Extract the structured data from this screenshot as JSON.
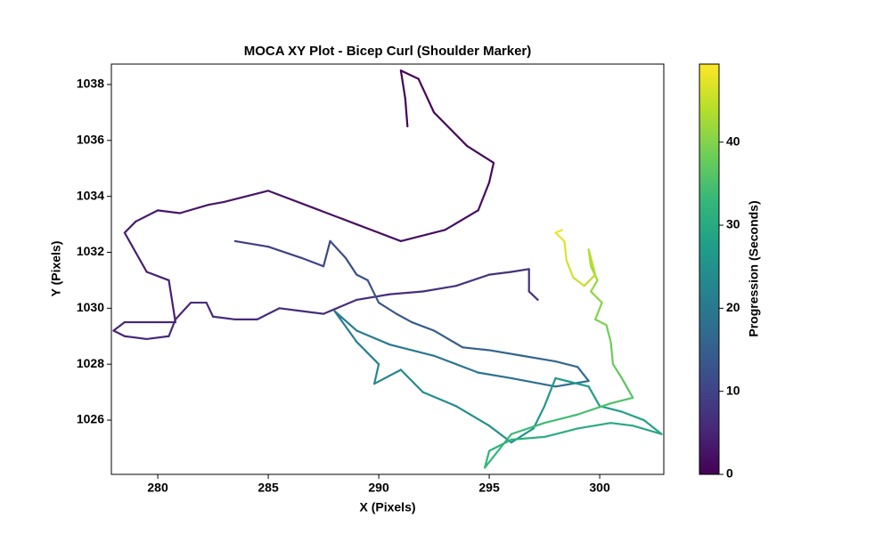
{
  "chart_data": {
    "type": "line",
    "title": "MOCA XY Plot - Bicep Curl (Shoulder Marker)",
    "xlabel": "X (Pixels)",
    "ylabel": "Y (Pixels)",
    "x": [
      291.3,
      291.2,
      291,
      291.8,
      292.5,
      294,
      295.2,
      295,
      294.5,
      293,
      291,
      289,
      287,
      285,
      283,
      282.3,
      281,
      280,
      279,
      278.5,
      279,
      279.5,
      280.5,
      280.7,
      280.8,
      279.5,
      278.5,
      278,
      278.5,
      279.5,
      280.5,
      280.8,
      281.5,
      282.2,
      282.5,
      283.5,
      284.5,
      285.5,
      286.5,
      287.5,
      289,
      290.5,
      292,
      293.5,
      295,
      296,
      296.8,
      296.8,
      297.2,
      null,
      283.5,
      285,
      286.5,
      287.5,
      287.8,
      288.5,
      289,
      289.5,
      290,
      290.8,
      291.5,
      292.5,
      293.8,
      295,
      296.5,
      298,
      299,
      299.5,
      298,
      296,
      294.5,
      292.5,
      290.5,
      289,
      288,
      289,
      290,
      289.8,
      291,
      292,
      293.5,
      295,
      296,
      297,
      297.5,
      298,
      299.5,
      300,
      301,
      302,
      302.8,
      301.5,
      300.5,
      299,
      297.5,
      296,
      295,
      294.8,
      296,
      297.5,
      299,
      300.5,
      301.5,
      301,
      300.6,
      300.5,
      300.3,
      299.8,
      300.1,
      299.6,
      299.9,
      299.6,
      299.5,
      299.8,
      299.3,
      298.8,
      298.5,
      298.4,
      298,
      298.3
    ],
    "y": [
      1036.5,
      1037.5,
      1038.5,
      1038.2,
      1037,
      1035.8,
      1035.2,
      1034.5,
      1033.5,
      1032.8,
      1032.4,
      1033,
      1033.6,
      1034.2,
      1033.8,
      1033.7,
      1033.4,
      1033.5,
      1033.1,
      1032.7,
      1032,
      1031.3,
      1031,
      1030,
      1029.5,
      1029.5,
      1029.5,
      1029.2,
      1029,
      1028.9,
      1029,
      1029.6,
      1030.2,
      1030.2,
      1029.7,
      1029.6,
      1029.6,
      1030,
      1029.9,
      1029.8,
      1030.3,
      1030.5,
      1030.6,
      1030.8,
      1031.2,
      1031.3,
      1031.4,
      1030.6,
      1030.3,
      null,
      1032.4,
      1032.2,
      1031.8,
      1031.5,
      1032.4,
      1031.8,
      1031.2,
      1031,
      1030.2,
      1029.8,
      1029.5,
      1029.2,
      1028.6,
      1028.5,
      1028.3,
      1028.1,
      1027.9,
      1027.4,
      1027.2,
      1027.5,
      1027.7,
      1028.3,
      1028.7,
      1029.2,
      1029.9,
      1028.8,
      1028,
      1027.3,
      1027.8,
      1027,
      1026.5,
      1025.8,
      1025.2,
      1025.7,
      1026.5,
      1027.5,
      1027.2,
      1026.5,
      1026.3,
      1026,
      1025.5,
      1025.8,
      1025.9,
      1025.7,
      1025.4,
      1025.3,
      1024.9,
      1024.3,
      1025.5,
      1025.9,
      1026.2,
      1026.6,
      1026.8,
      1027.5,
      1028,
      1028.8,
      1029.4,
      1029.6,
      1030.2,
      1030.6,
      1031,
      1031.5,
      1032.1,
      1031.2,
      1030.8,
      1031.1,
      1031.7,
      1032.4,
      1032.7,
      1032.8
    ],
    "t": [
      0,
      0.2,
      0.4,
      0.6,
      0.8,
      1,
      1.2,
      1.4,
      1.6,
      1.8,
      2,
      2.2,
      2.4,
      2.6,
      2.8,
      3,
      3.2,
      3.4,
      3.6,
      3.8,
      4,
      4.2,
      4.4,
      4.6,
      4.8,
      5,
      5.1,
      5.2,
      5.3,
      5.4,
      5.5,
      5.6,
      5.7,
      5.8,
      5.9,
      6,
      6.1,
      6.2,
      6.3,
      6.4,
      6.5,
      6.6,
      6.7,
      6.8,
      6.9,
      7,
      7.1,
      7.2,
      7.3,
      null,
      9,
      9.5,
      10,
      10.5,
      11,
      11.5,
      12,
      12.5,
      13,
      13.5,
      14,
      14.5,
      15,
      15.5,
      16,
      16.5,
      17,
      17.5,
      18,
      18.5,
      19,
      19.5,
      20,
      20.5,
      21,
      21.5,
      22,
      22.5,
      23,
      23.5,
      24,
      24.5,
      25,
      25.5,
      26,
      26.5,
      27,
      27.5,
      28,
      28.5,
      29,
      29.5,
      30,
      30.5,
      31,
      31.5,
      32,
      32.5,
      33,
      33.75,
      34.5,
      35.25,
      36,
      36.75,
      37.5,
      38.25,
      39,
      39.75,
      40.5,
      41.25,
      42,
      42.75,
      43.5,
      44.25,
      45,
      45.75,
      46.5,
      47.25,
      48,
      48.75
    ],
    "xlim": [
      277.9,
      302.9
    ],
    "ylim": [
      1024.06,
      1038.73
    ],
    "xticks": [
      280,
      285,
      290,
      295,
      300
    ],
    "yticks": [
      1026,
      1028,
      1030,
      1032,
      1034,
      1036,
      1038
    ],
    "colorbar": {
      "label": "Progression (Seconds)",
      "lim": [
        0,
        49.4
      ],
      "ticks": [
        0,
        10,
        20,
        30,
        40
      ],
      "colormap": "viridis"
    }
  }
}
